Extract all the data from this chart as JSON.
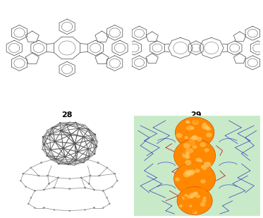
{
  "figure_width": 3.73,
  "figure_height": 3.09,
  "dpi": 100,
  "background_color": "#ffffff",
  "label_28": "28",
  "label_29": "29",
  "label_fontsize": 8,
  "struct_color": "#555555",
  "struct_lw": 0.55,
  "crystal_bg": "#c8eac8",
  "orange_color": "#FF8800",
  "orange_dark": "#CC5500",
  "orange_light": "#FFCC66",
  "blue_color": "#1111BB",
  "red_color": "#BB1111",
  "gray_atom": "#888888",
  "gray_dark": "#555555",
  "gray_light": "#bbbbbb"
}
